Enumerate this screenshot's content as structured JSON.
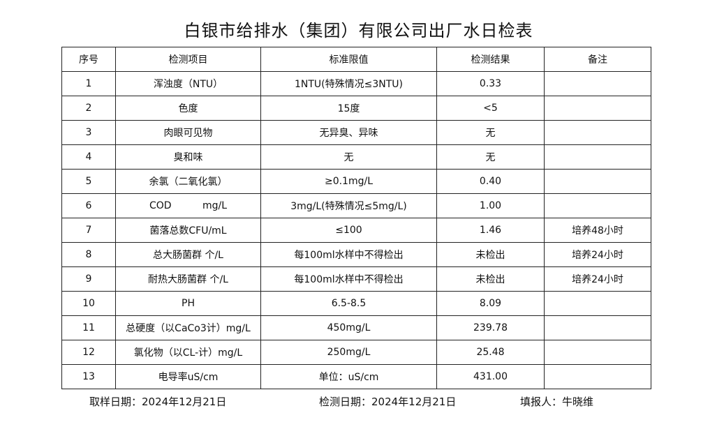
{
  "title": "白银市给排水（集团）有限公司出厂水日检表",
  "headers": [
    "序号",
    "检测项目",
    "标准限值",
    "检测结果",
    "备注"
  ],
  "rows": [
    [
      "1",
      "浑浊度（NTU）",
      "1NTU(特殊情况≤3NTU)",
      "0.33",
      ""
    ],
    [
      "2",
      "色度",
      "15度",
      "<5",
      ""
    ],
    [
      "3",
      "肉眼可见物",
      "无异臭、异味",
      "无",
      ""
    ],
    [
      "4",
      "臭和味",
      "无",
      "无",
      ""
    ],
    [
      "5",
      "余氯（二氧化氯）",
      "≥0.1mg/L",
      "0.40",
      ""
    ],
    [
      "6",
      "COD          mg/L",
      "3mg/L(特殊情况≤5mg/L)",
      "1.00",
      ""
    ],
    [
      "7",
      "菌落总数CFU/mL",
      "≤100",
      "1.46",
      "培养48小时"
    ],
    [
      "8",
      "总大肠菌群 个/L",
      "每100ml水样中不得检出",
      "未检出",
      "培养24小时"
    ],
    [
      "9",
      "耐热大肠菌群 个/L",
      "每100ml水样中不得检出",
      "未检出",
      "培养24小时"
    ],
    [
      "10",
      "PH",
      "6.5-8.5",
      "8.09",
      ""
    ],
    [
      "11",
      "总硬度（以CaCo3计）mg/L",
      "450mg/L",
      "239.78",
      ""
    ],
    [
      "12",
      "氯化物（以CL-计）mg/L",
      "250mg/L",
      "25.48",
      ""
    ],
    [
      "13",
      "电导率uS/cm",
      "单位：uS/cm",
      "431.00",
      ""
    ]
  ],
  "footer": {
    "sample_date": "取样日期：2024年12月21日",
    "test_date": "检测日期：2024年12月21日",
    "reporter": "填报人：牛晓维"
  }
}
